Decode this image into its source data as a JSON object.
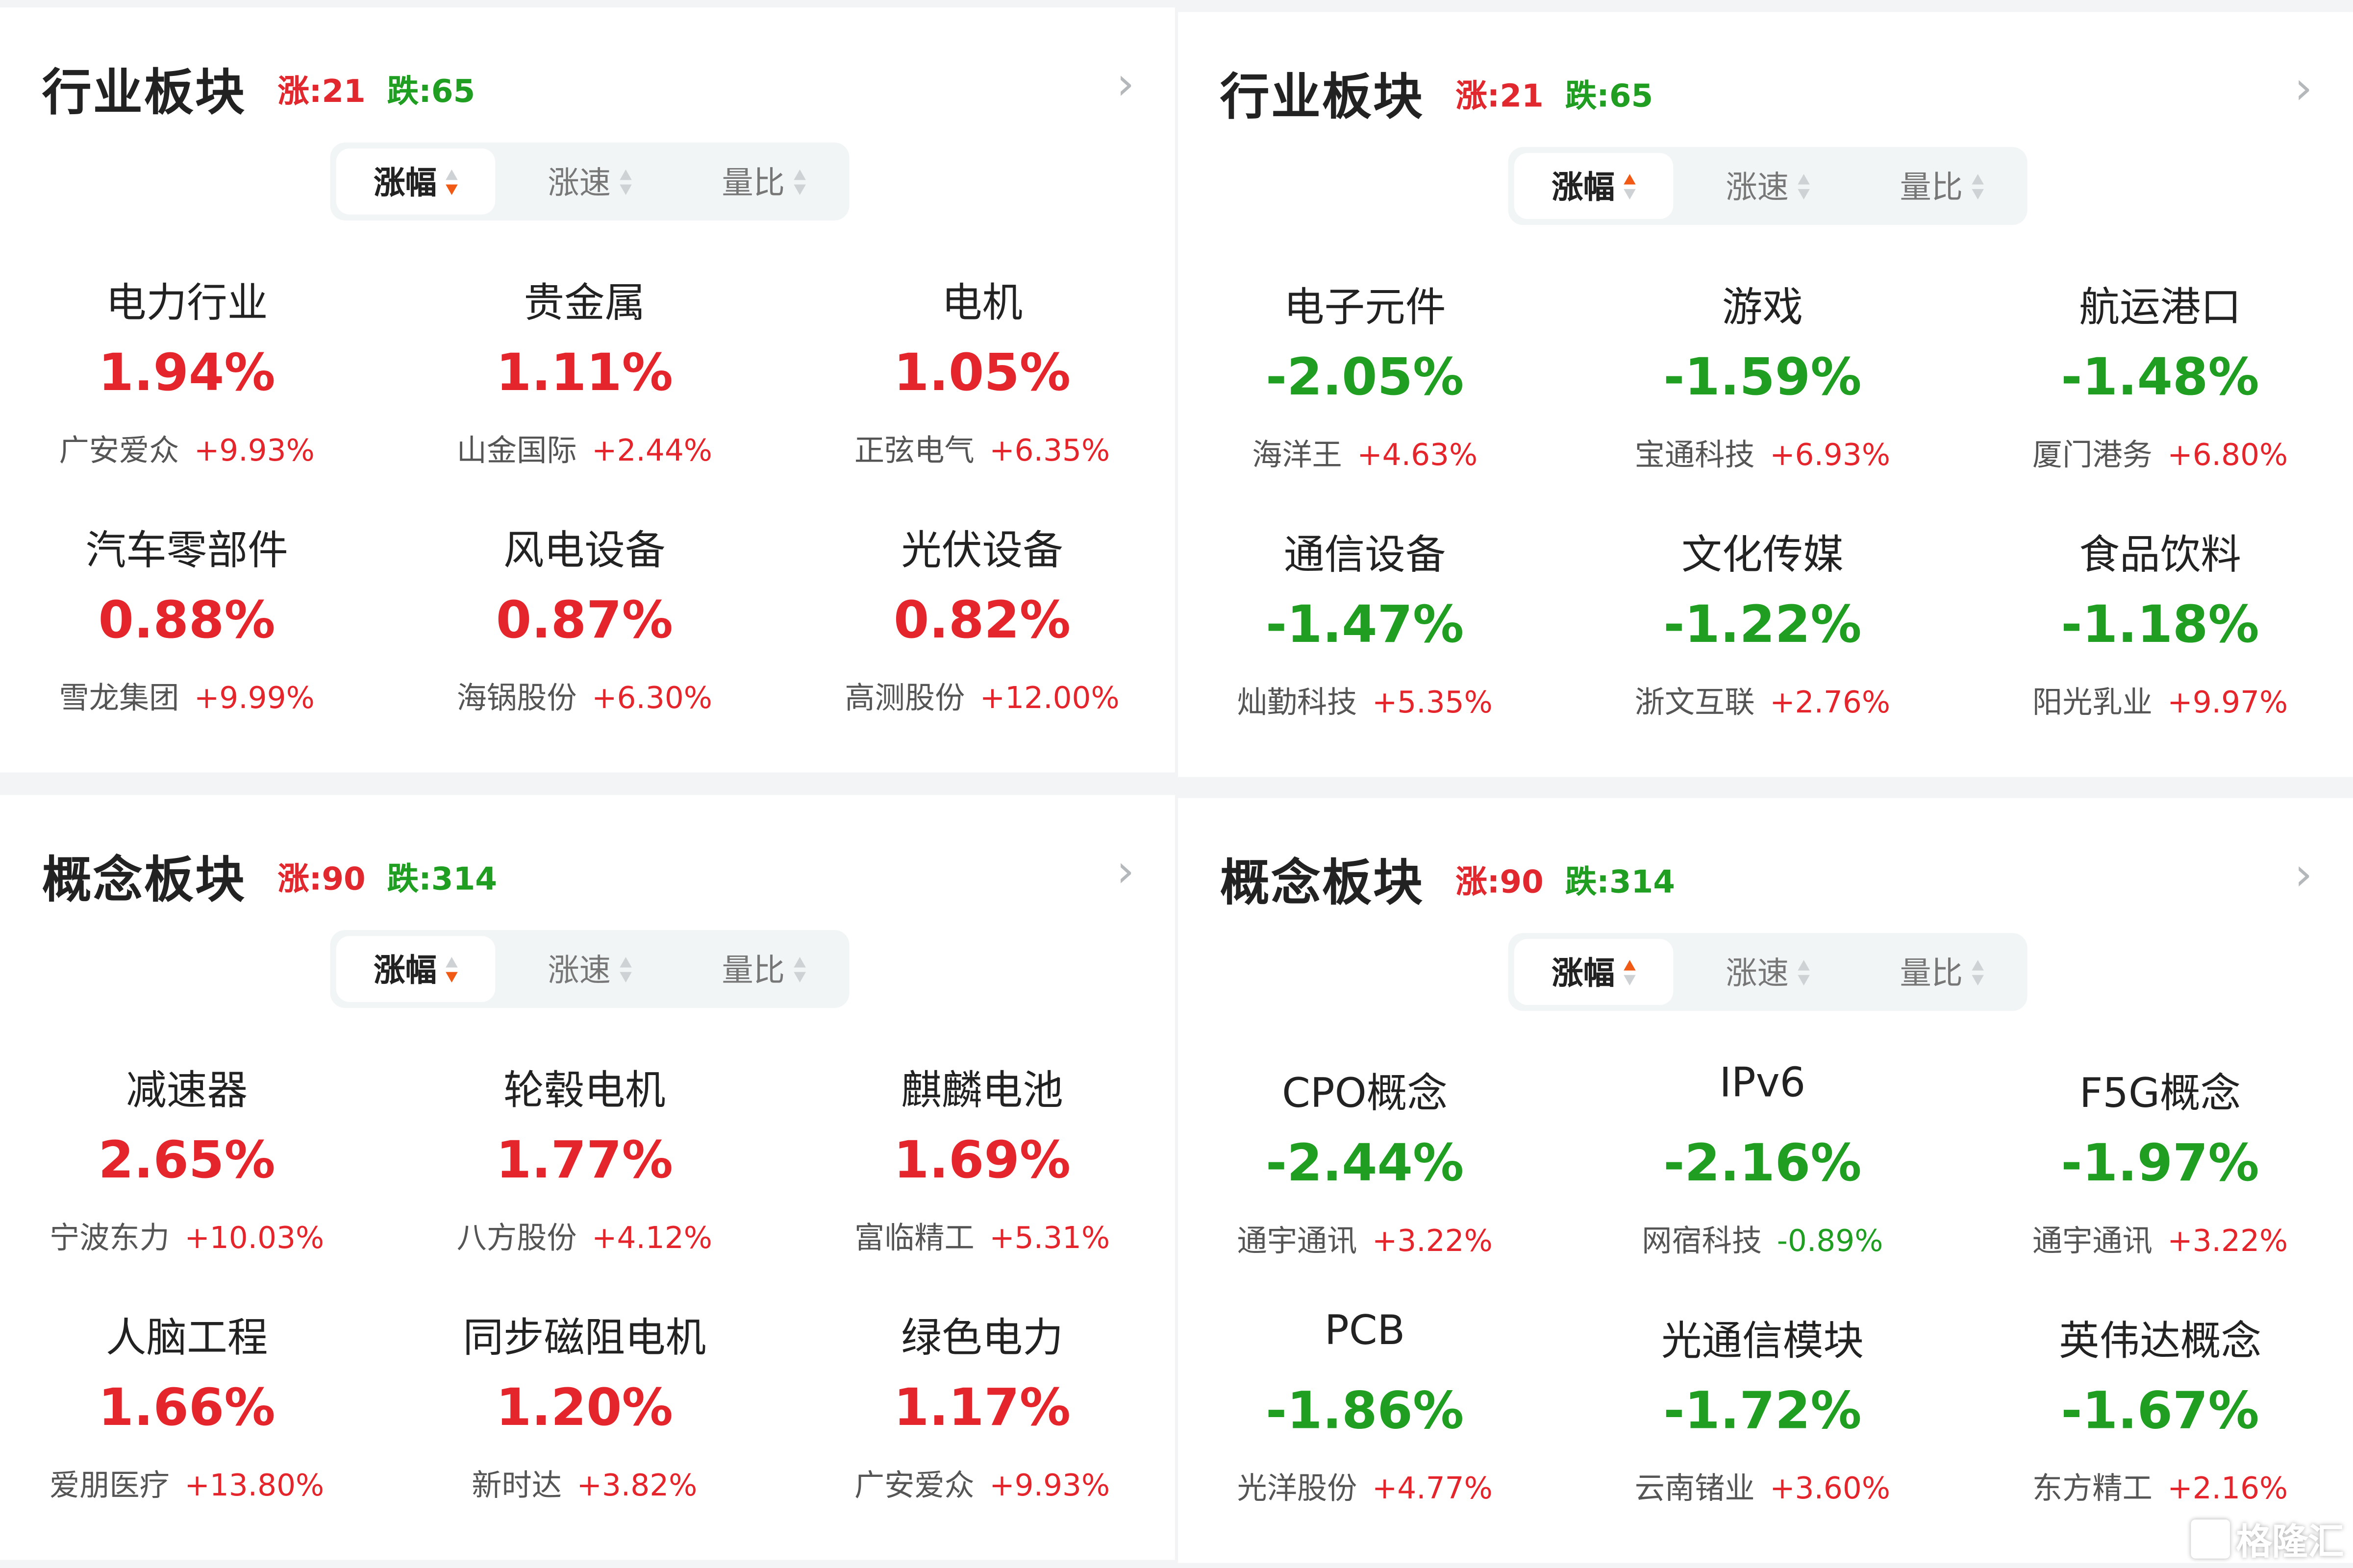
{
  "colors": {
    "up": "#e4262c",
    "down": "#1f9e22",
    "sort_active": "#f05a14",
    "background": "#f2f4f5"
  },
  "watermark": "格隆汇",
  "panels": [
    {
      "title": "行业板块",
      "up": "涨:21",
      "down": "跌:65",
      "tabs": [
        {
          "label": "涨幅",
          "sort": "desc",
          "active": true
        },
        {
          "label": "涨速",
          "sort": "none",
          "active": false
        },
        {
          "label": "量比",
          "sort": "none",
          "active": false
        }
      ],
      "items": [
        {
          "name": "电力行业",
          "pct": "1.94%",
          "dir": "up",
          "stock": "广安爱众",
          "stock_pct": "+9.93%",
          "stock_dir": "up"
        },
        {
          "name": "贵金属",
          "pct": "1.11%",
          "dir": "up",
          "stock": "山金国际",
          "stock_pct": "+2.44%",
          "stock_dir": "up"
        },
        {
          "name": "电机",
          "pct": "1.05%",
          "dir": "up",
          "stock": "正弦电气",
          "stock_pct": "+6.35%",
          "stock_dir": "up"
        },
        {
          "name": "汽车零部件",
          "pct": "0.88%",
          "dir": "up",
          "stock": "雪龙集团",
          "stock_pct": "+9.99%",
          "stock_dir": "up"
        },
        {
          "name": "风电设备",
          "pct": "0.87%",
          "dir": "up",
          "stock": "海锅股份",
          "stock_pct": "+6.30%",
          "stock_dir": "up"
        },
        {
          "name": "光伏设备",
          "pct": "0.82%",
          "dir": "up",
          "stock": "高测股份",
          "stock_pct": "+12.00%",
          "stock_dir": "up"
        }
      ]
    },
    {
      "title": "行业板块",
      "up": "涨:21",
      "down": "跌:65",
      "tabs": [
        {
          "label": "涨幅",
          "sort": "asc",
          "active": true
        },
        {
          "label": "涨速",
          "sort": "none",
          "active": false
        },
        {
          "label": "量比",
          "sort": "none",
          "active": false
        }
      ],
      "items": [
        {
          "name": "电子元件",
          "pct": "-2.05%",
          "dir": "down",
          "stock": "海洋王",
          "stock_pct": "+4.63%",
          "stock_dir": "up"
        },
        {
          "name": "游戏",
          "pct": "-1.59%",
          "dir": "down",
          "stock": "宝通科技",
          "stock_pct": "+6.93%",
          "stock_dir": "up"
        },
        {
          "name": "航运港口",
          "pct": "-1.48%",
          "dir": "down",
          "stock": "厦门港务",
          "stock_pct": "+6.80%",
          "stock_dir": "up"
        },
        {
          "name": "通信设备",
          "pct": "-1.47%",
          "dir": "down",
          "stock": "灿勤科技",
          "stock_pct": "+5.35%",
          "stock_dir": "up"
        },
        {
          "name": "文化传媒",
          "pct": "-1.22%",
          "dir": "down",
          "stock": "浙文互联",
          "stock_pct": "+2.76%",
          "stock_dir": "up"
        },
        {
          "name": "食品饮料",
          "pct": "-1.18%",
          "dir": "down",
          "stock": "阳光乳业",
          "stock_pct": "+9.97%",
          "stock_dir": "up"
        }
      ]
    },
    {
      "title": "概念板块",
      "up": "涨:90",
      "down": "跌:314",
      "tabs": [
        {
          "label": "涨幅",
          "sort": "desc",
          "active": true
        },
        {
          "label": "涨速",
          "sort": "none",
          "active": false
        },
        {
          "label": "量比",
          "sort": "none",
          "active": false
        }
      ],
      "items": [
        {
          "name": "减速器",
          "pct": "2.65%",
          "dir": "up",
          "stock": "宁波东力",
          "stock_pct": "+10.03%",
          "stock_dir": "up"
        },
        {
          "name": "轮毂电机",
          "pct": "1.77%",
          "dir": "up",
          "stock": "八方股份",
          "stock_pct": "+4.12%",
          "stock_dir": "up"
        },
        {
          "name": "麒麟电池",
          "pct": "1.69%",
          "dir": "up",
          "stock": "富临精工",
          "stock_pct": "+5.31%",
          "stock_dir": "up"
        },
        {
          "name": "人脑工程",
          "pct": "1.66%",
          "dir": "up",
          "stock": "爱朋医疗",
          "stock_pct": "+13.80%",
          "stock_dir": "up"
        },
        {
          "name": "同步磁阻电机",
          "pct": "1.20%",
          "dir": "up",
          "stock": "新时达",
          "stock_pct": "+3.82%",
          "stock_dir": "up"
        },
        {
          "name": "绿色电力",
          "pct": "1.17%",
          "dir": "up",
          "stock": "广安爱众",
          "stock_pct": "+9.93%",
          "stock_dir": "up"
        }
      ]
    },
    {
      "title": "概念板块",
      "up": "涨:90",
      "down": "跌:314",
      "tabs": [
        {
          "label": "涨幅",
          "sort": "asc",
          "active": true
        },
        {
          "label": "涨速",
          "sort": "none",
          "active": false
        },
        {
          "label": "量比",
          "sort": "none",
          "active": false
        }
      ],
      "items": [
        {
          "name": "CPO概念",
          "pct": "-2.44%",
          "dir": "down",
          "stock": "通宇通讯",
          "stock_pct": "+3.22%",
          "stock_dir": "up"
        },
        {
          "name": "IPv6",
          "pct": "-2.16%",
          "dir": "down",
          "stock": "网宿科技",
          "stock_pct": "-0.89%",
          "stock_dir": "down"
        },
        {
          "name": "F5G概念",
          "pct": "-1.97%",
          "dir": "down",
          "stock": "通宇通讯",
          "stock_pct": "+3.22%",
          "stock_dir": "up"
        },
        {
          "name": "PCB",
          "pct": "-1.86%",
          "dir": "down",
          "stock": "光洋股份",
          "stock_pct": "+4.77%",
          "stock_dir": "up"
        },
        {
          "name": "光通信模块",
          "pct": "-1.72%",
          "dir": "down",
          "stock": "云南锗业",
          "stock_pct": "+3.60%",
          "stock_dir": "up"
        },
        {
          "name": "英伟达概念",
          "pct": "-1.67%",
          "dir": "down",
          "stock": "东方精工",
          "stock_pct": "+2.16%",
          "stock_dir": "up"
        }
      ]
    }
  ]
}
